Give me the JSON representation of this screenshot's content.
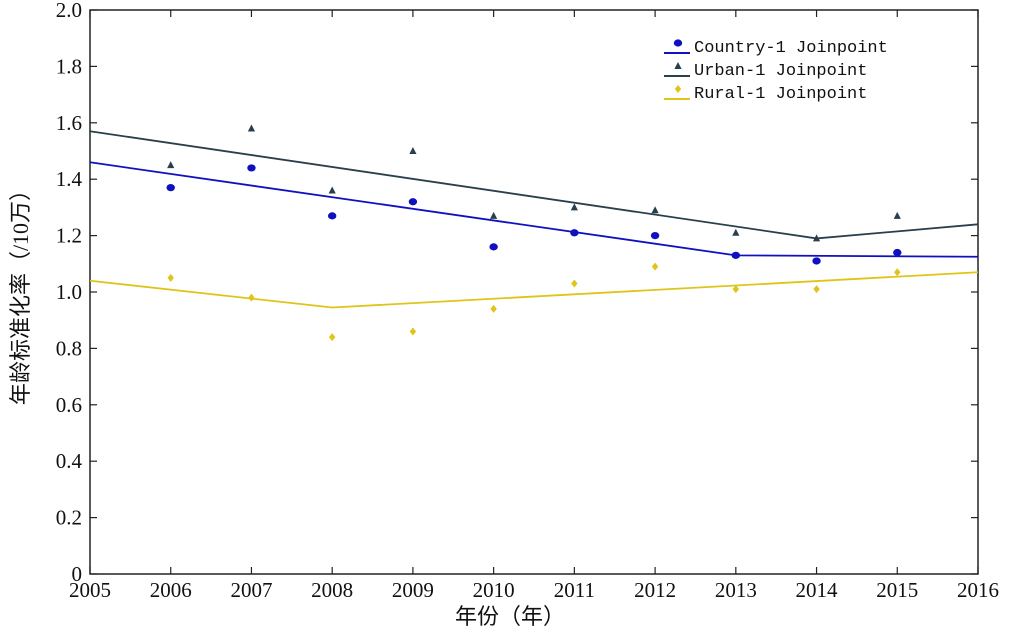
{
  "chart_data": {
    "type": "line",
    "title": "",
    "xlabel": "年份（年）",
    "ylabel": "年龄标准化率（/10万）",
    "xlim": [
      2005,
      2016
    ],
    "ylim": [
      0,
      2.0
    ],
    "x_ticks": [
      "2005",
      "2006",
      "2007",
      "2008",
      "2009",
      "2010",
      "2011",
      "2012",
      "2013",
      "2014",
      "2015",
      "2016"
    ],
    "y_ticks": [
      "0",
      "0.2",
      "0.4",
      "0.6",
      "0.8",
      "1.0",
      "1.2",
      "1.4",
      "1.6",
      "1.8",
      "2.0"
    ],
    "grid": false,
    "legend_position": "top-right",
    "series": [
      {
        "name": "Country-1 Joinpoint",
        "color": "#1010c0",
        "marker": "circle",
        "observed": {
          "x": [
            2006,
            2007,
            2008,
            2009,
            2010,
            2011,
            2012,
            2013,
            2014,
            2015
          ],
          "y": [
            1.37,
            1.44,
            1.27,
            1.32,
            1.16,
            1.21,
            1.2,
            1.13,
            1.11,
            1.14
          ]
        },
        "fitted": {
          "x": [
            2005,
            2013,
            2016
          ],
          "y": [
            1.46,
            1.13,
            1.125
          ]
        }
      },
      {
        "name": "Urban-1 Joinpoint",
        "color": "#2a3f4c",
        "marker": "triangle",
        "observed": {
          "x": [
            2006,
            2007,
            2008,
            2009,
            2010,
            2011,
            2012,
            2013,
            2014,
            2015
          ],
          "y": [
            1.45,
            1.58,
            1.36,
            1.5,
            1.27,
            1.3,
            1.29,
            1.21,
            1.19,
            1.27
          ]
        },
        "fitted": {
          "x": [
            2005,
            2014,
            2016
          ],
          "y": [
            1.57,
            1.19,
            1.24
          ]
        }
      },
      {
        "name": "Rural-1 Joinpoint",
        "color": "#e0c419",
        "marker": "diamond",
        "observed": {
          "x": [
            2006,
            2007,
            2008,
            2009,
            2010,
            2011,
            2012,
            2013,
            2014,
            2015
          ],
          "y": [
            1.05,
            0.98,
            0.84,
            0.86,
            0.94,
            1.03,
            1.09,
            1.01,
            1.01,
            1.07
          ]
        },
        "fitted": {
          "x": [
            2005,
            2008,
            2016
          ],
          "y": [
            1.04,
            0.945,
            1.07
          ]
        }
      }
    ]
  }
}
